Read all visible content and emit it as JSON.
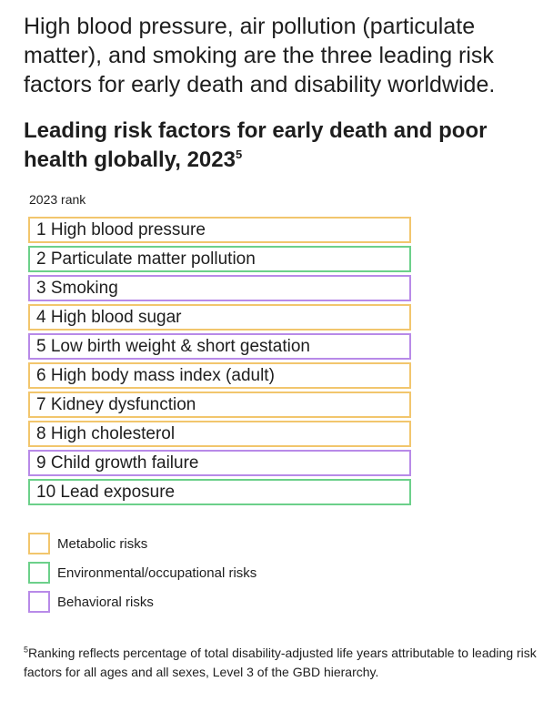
{
  "intro": "High blood pressure, air pollution (particulate matter), and smoking are the three leading risk factors for early death and disability worldwide.",
  "title": {
    "text": "Leading risk factors for early death and poor health globally, 2023",
    "footnote_ref": "5"
  },
  "rank_label": "2023 rank",
  "risks": [
    {
      "label": "1 High blood pressure",
      "category": "metabolic"
    },
    {
      "label": "2 Particulate matter pollution",
      "category": "environmental"
    },
    {
      "label": "3 Smoking",
      "category": "behavioral"
    },
    {
      "label": "4 High blood sugar",
      "category": "metabolic"
    },
    {
      "label": "5 Low birth weight & short gestation",
      "category": "behavioral"
    },
    {
      "label": "6 High body mass index (adult)",
      "category": "metabolic"
    },
    {
      "label": "7 Kidney dysfunction",
      "category": "metabolic"
    },
    {
      "label": "8 High cholesterol",
      "category": "metabolic"
    },
    {
      "label": "9 Child growth failure",
      "category": "behavioral"
    },
    {
      "label": "10 Lead exposure",
      "category": "environmental"
    }
  ],
  "legend": [
    {
      "label": "Metabolic risks",
      "color": "#f2c66d"
    },
    {
      "label": "Environmental/occupational risks",
      "color": "#6cd08a"
    },
    {
      "label": "Behavioral risks",
      "color": "#b88ae8"
    }
  ],
  "footnote": {
    "marker": "5",
    "text": "Ranking reflects percentage of total disability-adjusted life years attributable to leading risk factors for all ages and all sexes, Level 3 of the GBD hierarchy."
  }
}
